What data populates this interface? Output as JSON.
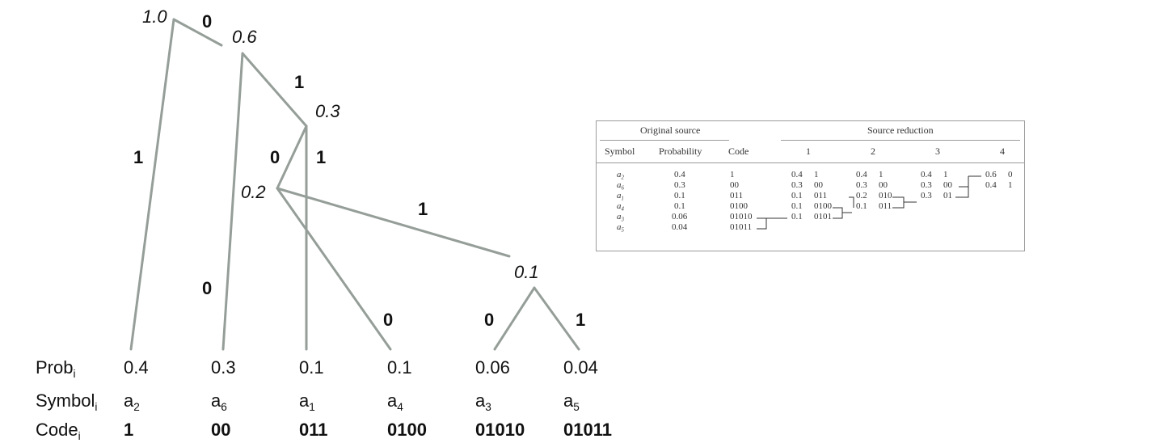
{
  "tree": {
    "node_labels": [
      "1.0",
      "0.6",
      "0.3",
      "0.2",
      "0.1"
    ],
    "edge_bits": [
      "0",
      "1",
      "1",
      "0",
      "1",
      "1",
      "0",
      "0",
      "0",
      "1"
    ]
  },
  "rows": {
    "prob_label": "Prob",
    "symbol_label": "Symbol",
    "code_label": "Code",
    "index_sub": "i",
    "symbol_prefix": "a",
    "probs": [
      "0.4",
      "0.3",
      "0.1",
      "0.1",
      "0.06",
      "0.04"
    ],
    "symbol_subs": [
      "2",
      "6",
      "1",
      "4",
      "3",
      "5"
    ],
    "codes": [
      "1",
      "00",
      "011",
      "0100",
      "01010",
      "01011"
    ]
  },
  "table": {
    "group_original": "Original source",
    "group_reduction": "Source reduction",
    "col_symbol": "Symbol",
    "col_probability": "Probability",
    "col_code": "Code",
    "col_r1": "1",
    "col_r2": "2",
    "col_r3": "3",
    "col_r4": "4",
    "symbol_prefix": "a",
    "rows": [
      {
        "sub": "2",
        "prob": "0.4",
        "code": "1",
        "r1p": "0.4",
        "r1c": "1",
        "r2p": "0.4",
        "r2c": "1",
        "r3p": "0.4",
        "r3c": "1",
        "r4p": "0.6",
        "r4c": "0"
      },
      {
        "sub": "6",
        "prob": "0.3",
        "code": "00",
        "r1p": "0.3",
        "r1c": "00",
        "r2p": "0.3",
        "r2c": "00",
        "r3p": "0.3",
        "r3c": "00",
        "r4p": "0.4",
        "r4c": "1"
      },
      {
        "sub": "1",
        "prob": "0.1",
        "code": "011",
        "r1p": "0.1",
        "r1c": "011",
        "r2p": "0.2",
        "r2c": "010",
        "r3p": "0.3",
        "r3c": "01",
        "r4p": "",
        "r4c": ""
      },
      {
        "sub": "4",
        "prob": "0.1",
        "code": "0100",
        "r1p": "0.1",
        "r1c": "0100",
        "r2p": "0.1",
        "r2c": "011",
        "r3p": "",
        "r3c": "",
        "r4p": "",
        "r4c": ""
      },
      {
        "sub": "3",
        "prob": "0.06",
        "code": "01010",
        "r1p": "0.1",
        "r1c": "0101",
        "r2p": "",
        "r2c": "",
        "r3p": "",
        "r3c": "",
        "r4p": "",
        "r4c": ""
      },
      {
        "sub": "5",
        "prob": "0.04",
        "code": "01011",
        "r1p": "",
        "r1c": "",
        "r2p": "",
        "r2c": "",
        "r3p": "",
        "r3c": "",
        "r4p": "",
        "r4c": ""
      }
    ]
  }
}
